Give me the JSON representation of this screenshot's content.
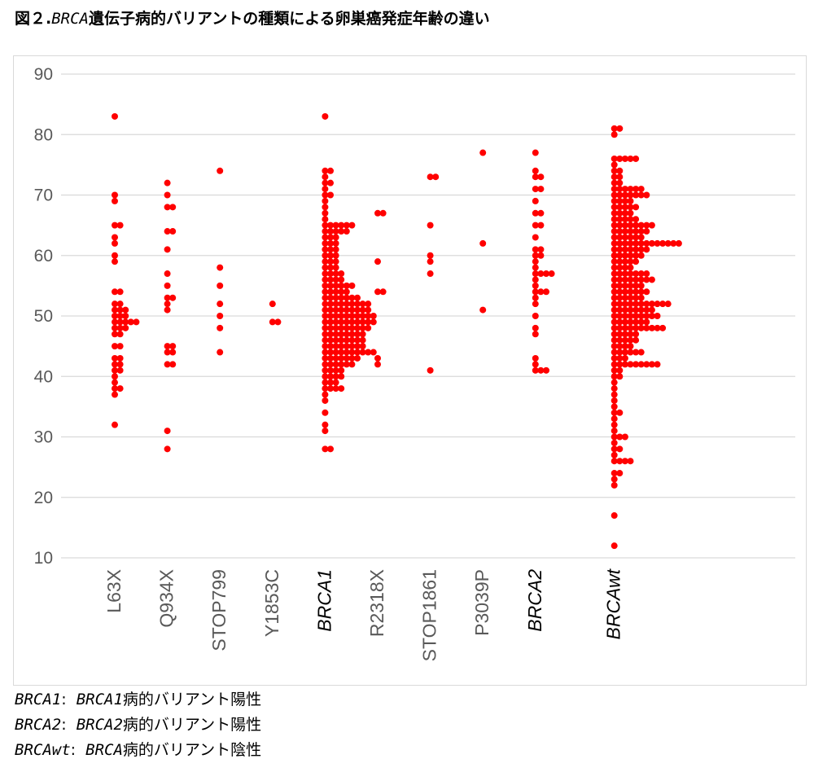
{
  "title": {
    "prefix": "図２.",
    "gene": "BRCA",
    "rest": "遺伝子病的バリアントの種類による卵巣癌発症年齢の違い"
  },
  "notes": [
    {
      "key": "BRCA1",
      "sep": ":  ",
      "gene": "BRCA1",
      "text": "病的バリアント陽性"
    },
    {
      "key": "BRCA2",
      "sep": ":  ",
      "gene": "BRCA2",
      "text": "病的バリアント陽性"
    },
    {
      "key": "BRCAwt",
      "sep": ":  ",
      "gene": "BRCA",
      "text": "病的バリアント陰性"
    }
  ],
  "colors": {
    "point": "#ff0000",
    "grid": "#d9d9d9",
    "tick": "#595959"
  },
  "chart_data": {
    "type": "scatter",
    "subtype": "dot-strip",
    "ylim": [
      10,
      90
    ],
    "yticks": [
      10,
      20,
      30,
      40,
      50,
      60,
      70,
      80,
      90
    ],
    "grid": true,
    "categories": [
      {
        "label": "L63X",
        "italic": false,
        "x": 1,
        "values": [
          83,
          70,
          69,
          65,
          65,
          63,
          62,
          60,
          59,
          54,
          54,
          52,
          52,
          51,
          51,
          51,
          50,
          50,
          50,
          49,
          49,
          49,
          49,
          49,
          48,
          48,
          48,
          47,
          47,
          45,
          45,
          43,
          43,
          42,
          42,
          41,
          41,
          40,
          39,
          38,
          38,
          37,
          32
        ]
      },
      {
        "label": "Q934X",
        "italic": false,
        "x": 2,
        "values": [
          72,
          70,
          68,
          68,
          64,
          64,
          61,
          57,
          55,
          53,
          53,
          52,
          51,
          45,
          45,
          44,
          44,
          42,
          42,
          31,
          28
        ]
      },
      {
        "label": "STOP799",
        "italic": false,
        "x": 3,
        "values": [
          74,
          58,
          55,
          52,
          50,
          48,
          44
        ]
      },
      {
        "label": "Y1853C",
        "italic": false,
        "x": 4,
        "values": [
          52,
          49,
          49
        ]
      },
      {
        "label": "BRCA1",
        "italic": true,
        "x": 5,
        "values": [
          83,
          74,
          74,
          73,
          72,
          72,
          71,
          70,
          70,
          69,
          68,
          67,
          66,
          65,
          65,
          65,
          65,
          65,
          65,
          64,
          64,
          64,
          64,
          64,
          63,
          63,
          63,
          62,
          62,
          62,
          61,
          61,
          61,
          60,
          60,
          60,
          59,
          59,
          59,
          58,
          58,
          58,
          57,
          57,
          57,
          57,
          56,
          56,
          56,
          56,
          55,
          55,
          55,
          55,
          55,
          55,
          54,
          54,
          54,
          54,
          54,
          53,
          53,
          53,
          53,
          53,
          53,
          53,
          52,
          52,
          52,
          52,
          52,
          52,
          52,
          52,
          52,
          51,
          51,
          51,
          51,
          51,
          51,
          51,
          51,
          51,
          50,
          50,
          50,
          50,
          50,
          50,
          50,
          50,
          50,
          50,
          49,
          49,
          49,
          49,
          49,
          49,
          49,
          49,
          49,
          49,
          48,
          48,
          48,
          48,
          48,
          48,
          48,
          48,
          48,
          47,
          47,
          47,
          47,
          47,
          47,
          47,
          47,
          46,
          46,
          46,
          46,
          46,
          46,
          46,
          46,
          45,
          45,
          45,
          45,
          45,
          45,
          45,
          45,
          44,
          44,
          44,
          44,
          44,
          44,
          44,
          44,
          44,
          44,
          43,
          43,
          43,
          43,
          43,
          43,
          43,
          42,
          42,
          42,
          42,
          42,
          42,
          41,
          41,
          41,
          41,
          40,
          40,
          40,
          40,
          39,
          39,
          39,
          38,
          38,
          38,
          38,
          37,
          36,
          34,
          32,
          31,
          28,
          28
        ]
      },
      {
        "label": "R2318X",
        "italic": false,
        "x": 6,
        "values": [
          67,
          67,
          59,
          54,
          54,
          43,
          42
        ]
      },
      {
        "label": "STOP1861",
        "italic": false,
        "x": 7,
        "values": [
          73,
          73,
          65,
          60,
          59,
          57,
          41
        ]
      },
      {
        "label": "P3039P",
        "italic": false,
        "x": 8,
        "values": [
          77,
          62,
          51
        ]
      },
      {
        "label": "BRCA2",
        "italic": true,
        "x": 9,
        "values": [
          77,
          74,
          73,
          73,
          71,
          71,
          69,
          67,
          67,
          65,
          65,
          63,
          61,
          61,
          60,
          60,
          59,
          58,
          57,
          57,
          57,
          57,
          56,
          55,
          54,
          54,
          54,
          53,
          52,
          50,
          48,
          47,
          43,
          42,
          41,
          41,
          41
        ]
      },
      {
        "label": "BRCAwt",
        "italic": true,
        "x": 10.5,
        "values": [
          81,
          81,
          80,
          76,
          76,
          76,
          76,
          76,
          75,
          74,
          74,
          73,
          73,
          72,
          72,
          71,
          71,
          71,
          71,
          71,
          71,
          70,
          70,
          70,
          70,
          70,
          70,
          70,
          69,
          69,
          69,
          69,
          68,
          68,
          68,
          68,
          68,
          67,
          67,
          67,
          67,
          66,
          66,
          66,
          66,
          66,
          65,
          65,
          65,
          65,
          65,
          65,
          65,
          65,
          64,
          64,
          64,
          64,
          64,
          64,
          64,
          63,
          63,
          63,
          63,
          63,
          63,
          62,
          62,
          62,
          62,
          62,
          62,
          62,
          62,
          62,
          62,
          62,
          62,
          62,
          61,
          61,
          61,
          61,
          61,
          61,
          61,
          60,
          60,
          60,
          60,
          60,
          60,
          59,
          59,
          59,
          59,
          59,
          58,
          58,
          58,
          58,
          57,
          57,
          57,
          57,
          57,
          57,
          57,
          56,
          56,
          56,
          56,
          56,
          56,
          56,
          56,
          55,
          55,
          55,
          55,
          55,
          55,
          54,
          54,
          54,
          54,
          54,
          54,
          54,
          53,
          53,
          53,
          53,
          53,
          53,
          52,
          52,
          52,
          52,
          52,
          52,
          52,
          52,
          52,
          52,
          52,
          51,
          51,
          51,
          51,
          51,
          51,
          51,
          51,
          50,
          50,
          50,
          50,
          50,
          50,
          50,
          50,
          50,
          49,
          49,
          49,
          49,
          49,
          49,
          49,
          48,
          48,
          48,
          48,
          48,
          48,
          48,
          48,
          48,
          48,
          47,
          47,
          47,
          47,
          47,
          46,
          46,
          46,
          46,
          46,
          45,
          45,
          45,
          45,
          44,
          44,
          44,
          44,
          44,
          44,
          43,
          43,
          43,
          42,
          42,
          42,
          42,
          42,
          42,
          42,
          42,
          42,
          41,
          41,
          40,
          40,
          39,
          38,
          37,
          36,
          35,
          34,
          34,
          33,
          32,
          31,
          30,
          30,
          30,
          29,
          28,
          28,
          27,
          26,
          26,
          26,
          26,
          24,
          24,
          23,
          22,
          17,
          12
        ]
      }
    ]
  }
}
